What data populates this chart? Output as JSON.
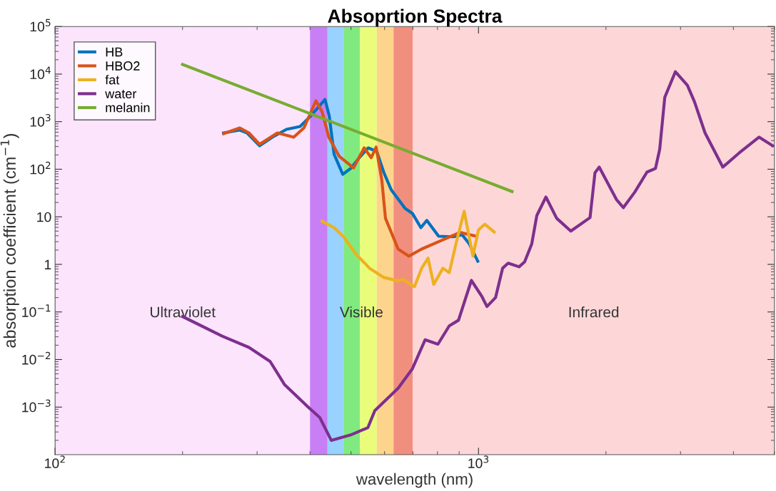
{
  "chart_data": {
    "type": "line",
    "title": "Absoprtion Spectra",
    "xlabel": "wavelength (nm)",
    "ylabel": "absorption coefficient (cm$^{−1}$)",
    "log": "xy",
    "xlim": [
      100,
      5000
    ],
    "ylim": [
      0.0001,
      100000
    ],
    "xticks": [
      {
        "value": 100,
        "label": "10$^{2}$"
      },
      {
        "value": 1000,
        "label": "10$^{3}$"
      }
    ],
    "yticks": [
      {
        "value": 0.001,
        "label": "10$^{−3}$"
      },
      {
        "value": 0.01,
        "label": "10$^{−2}$"
      },
      {
        "value": 0.1,
        "label": "10$^{−1}$"
      },
      1,
      10,
      {
        "value": 100,
        "label": "10$^{2}$"
      },
      {
        "value": 1000,
        "label": "10$^{3}$"
      },
      {
        "value": 10000,
        "label": "10$^{4}$"
      },
      {
        "value": 100000,
        "label": "10$^{5}$"
      }
    ],
    "grid": false,
    "legend": "top left",
    "bands": [
      {
        "axis": "x",
        "from": 100,
        "to": 400,
        "label": "Ultraviolet",
        "color": "#fce4fc"
      },
      {
        "axis": "x",
        "from": 400,
        "to": 440,
        "color": "#c87ff5"
      },
      {
        "axis": "x",
        "from": 440,
        "to": 480,
        "color": "#99d1ff"
      },
      {
        "axis": "x",
        "from": 480,
        "to": 525,
        "color": "#80ea80"
      },
      {
        "axis": "x",
        "from": 525,
        "to": 575,
        "color": "#e9fd7a"
      },
      {
        "axis": "x",
        "from": 575,
        "to": 630,
        "color": "#fdd48c"
      },
      {
        "axis": "x",
        "from": 630,
        "to": 700,
        "color": "#f18f7f"
      },
      {
        "axis": "x",
        "from": 700,
        "to": 5000,
        "label": "Infrared",
        "color": "#fdd7d8"
      }
    ],
    "annotations": [
      "Visible"
    ],
    "series": [
      {
        "name": "HB",
        "color": "#0072bd",
        "x": [
          250,
          273,
          284,
          304,
          326,
          352,
          379,
          402,
          434,
          444,
          456,
          478,
          499,
          526,
          549,
          575,
          598,
          622,
          671,
          698,
          731,
          755,
          805,
          871,
          915,
          951,
          996
        ],
        "values": [
          580,
          665,
          580,
          312,
          472,
          689,
          790,
          1330,
          2930,
          1330,
          206,
          78,
          104,
          186,
          281,
          237,
          84,
          37,
          15,
          11.8,
          5.9,
          8.4,
          3.9,
          3.8,
          4.2,
          2.7,
          1.17
        ]
      },
      {
        "name": "HBO2",
        "color": "#d95319",
        "x": [
          250,
          273,
          287,
          304,
          335,
          366,
          387,
          413,
          427,
          443,
          469,
          507,
          537,
          558,
          573,
          591,
          603,
          646,
          685,
          734,
          805,
          904,
          989
        ],
        "values": [
          560,
          738,
          580,
          334,
          580,
          472,
          738,
          2740,
          1630,
          472,
          186,
          107,
          281,
          174,
          291,
          60,
          9.3,
          2.1,
          1.49,
          2.1,
          3.0,
          4.7,
          3.9
        ]
      },
      {
        "name": "fat",
        "color": "#edb120",
        "x": [
          427,
          456,
          480,
          513,
          553,
          598,
          646,
          664,
          706,
          734,
          760,
          784,
          824,
          853,
          887,
          925,
          970,
          1000,
          1035,
          1089
        ],
        "values": [
          8.1,
          5.9,
          3.8,
          1.66,
          0.83,
          0.53,
          0.45,
          0.48,
          0.34,
          0.83,
          1.35,
          0.38,
          0.83,
          0.67,
          3.0,
          13.1,
          1.49,
          5.3,
          7.0,
          4.8
        ]
      },
      {
        "name": "water",
        "color": "#7e2f8e",
        "x": [
          200,
          248,
          287,
          322,
          348,
          396,
          422,
          449,
          499,
          548,
          569,
          646,
          698,
          748,
          802,
          853,
          897,
          962,
          1019,
          1047,
          1097,
          1140,
          1175,
          1247,
          1285,
          1336,
          1373,
          1443,
          1530,
          1652,
          1834,
          1884,
          1928,
          2118,
          2199,
          2339,
          2500,
          2618,
          2679,
          2754,
          2917,
          3114,
          3236,
          3428,
          3776,
          4130,
          4600,
          4950
        ],
        "values": [
          0.08,
          0.031,
          0.018,
          0.0091,
          0.003,
          0.001,
          0.0006,
          0.0002,
          0.00026,
          0.00037,
          0.00084,
          0.0025,
          0.0064,
          0.026,
          0.021,
          0.051,
          0.067,
          0.46,
          0.21,
          0.13,
          0.2,
          0.83,
          1.06,
          0.89,
          1.13,
          2.7,
          10.6,
          26,
          9.3,
          5.0,
          9.6,
          84,
          111,
          23,
          15.6,
          33,
          87,
          104,
          262,
          3250,
          11200,
          5830,
          2640,
          580,
          111,
          221,
          472,
          312
        ]
      },
      {
        "name": "melanin",
        "color": "#77ac30",
        "x": [
          200,
          1200
        ],
        "values": [
          16000,
          34
        ]
      }
    ]
  }
}
